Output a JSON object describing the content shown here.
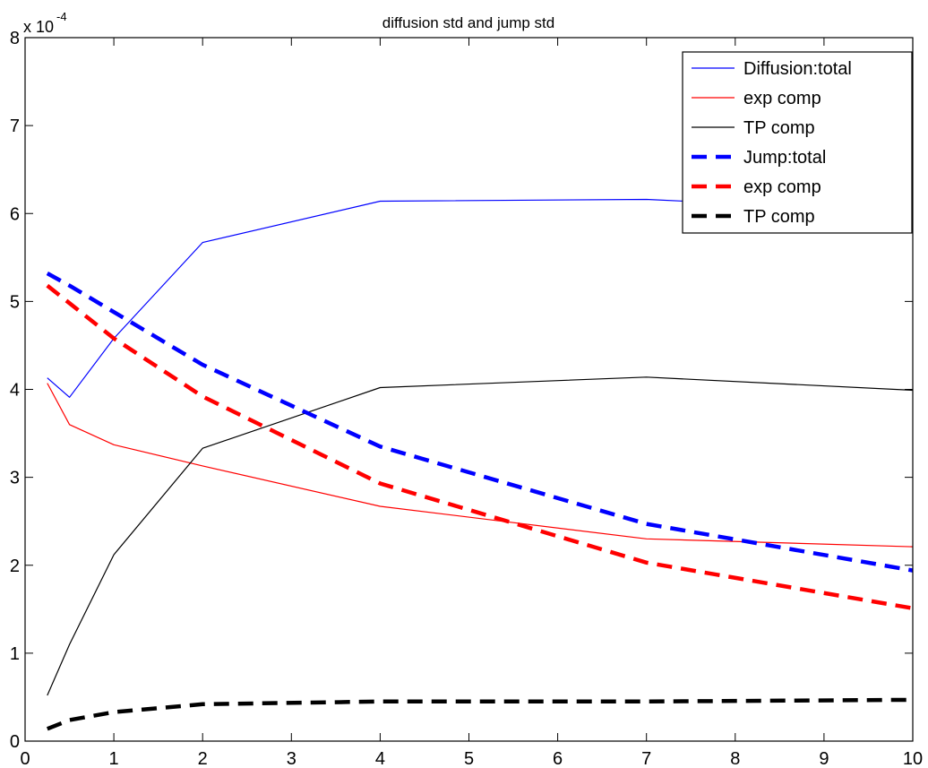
{
  "chart_data": {
    "type": "line",
    "title": "diffusion std and jump std",
    "xlabel": "",
    "ylabel": "",
    "xlim": [
      0,
      10
    ],
    "ylim": [
      0,
      8
    ],
    "x_ticks": [
      "0",
      "1",
      "2",
      "3",
      "4",
      "5",
      "6",
      "7",
      "8",
      "9",
      "10"
    ],
    "y_ticks": [
      "0",
      "1",
      "2",
      "3",
      "4",
      "5",
      "6",
      "7",
      "8"
    ],
    "y_multiplier": {
      "base": "x 10",
      "exponent": "-4"
    },
    "grid": false,
    "legend_position": "top-right",
    "x": [
      0.25,
      0.5,
      1,
      2,
      4,
      7,
      10
    ],
    "series": [
      {
        "name": "Diffusion:total",
        "color": "#0000ff",
        "style": "solid",
        "values": [
          4.13,
          3.91,
          4.58,
          5.67,
          6.14,
          6.16,
          6.02
        ]
      },
      {
        "name": "exp comp",
        "color": "#ff0000",
        "style": "solid",
        "values": [
          4.07,
          3.6,
          3.37,
          3.13,
          2.67,
          2.3,
          2.21
        ]
      },
      {
        "name": "TP comp",
        "color": "#000000",
        "style": "solid",
        "values": [
          0.52,
          1.1,
          2.12,
          3.33,
          4.02,
          4.14,
          3.99
        ]
      },
      {
        "name": "Jump:total",
        "color": "#0000ff",
        "style": "dashed",
        "values": [
          5.32,
          5.18,
          4.88,
          4.28,
          3.35,
          2.47,
          1.94
        ]
      },
      {
        "name": "exp comp",
        "color": "#ff0000",
        "style": "dashed",
        "values": [
          5.18,
          4.98,
          4.58,
          3.92,
          2.93,
          2.03,
          1.51
        ]
      },
      {
        "name": "TP comp",
        "color": "#000000",
        "style": "dashed",
        "values": [
          0.14,
          0.24,
          0.33,
          0.42,
          0.45,
          0.45,
          0.47
        ]
      }
    ]
  }
}
